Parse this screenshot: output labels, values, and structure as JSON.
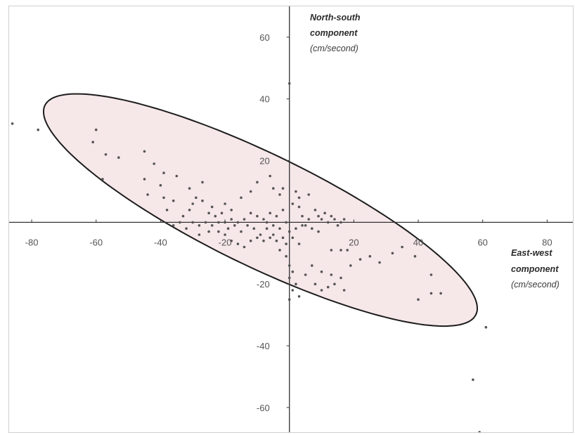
{
  "chart_data": {
    "type": "scatter",
    "title": "",
    "xlabel": [
      "East-west",
      "component",
      "(cm/second)"
    ],
    "ylabel": [
      "North-south",
      "component",
      "(cm/second)"
    ],
    "xlim": [
      -87,
      88
    ],
    "ylim": [
      -68,
      70
    ],
    "x_ticks": [
      -80,
      -60,
      -40,
      -20,
      0,
      20,
      40,
      60,
      80
    ],
    "y_ticks": [
      60,
      40,
      20,
      0,
      -20,
      -40,
      -60
    ],
    "grid": false,
    "ellipse": {
      "label": "",
      "center": [
        -9,
        4
      ],
      "semi_major": 75,
      "semi_minor": 18,
      "angle_deg": -27,
      "fill": "#f6e7e9",
      "stroke": "#1c1c1c"
    },
    "colors": {
      "points": "#555555",
      "axes": "#333333",
      "text": "#555555"
    },
    "points": [
      [
        -86,
        32
      ],
      [
        -78,
        30
      ],
      [
        -60,
        30
      ],
      [
        -61,
        26
      ],
      [
        -57,
        22
      ],
      [
        -53,
        21
      ],
      [
        -58,
        14
      ],
      [
        -45,
        23
      ],
      [
        -42,
        19
      ],
      [
        -45,
        14
      ],
      [
        -44,
        9
      ],
      [
        -39,
        16
      ],
      [
        -35,
        15
      ],
      [
        -40,
        12
      ],
      [
        -39,
        8
      ],
      [
        -27,
        13
      ],
      [
        -31,
        11
      ],
      [
        -36,
        7
      ],
      [
        -30,
        6
      ],
      [
        -27,
        7
      ],
      [
        -31,
        4
      ],
      [
        -38,
        4
      ],
      [
        -25,
        3
      ],
      [
        -20,
        6
      ],
      [
        -15,
        8
      ],
      [
        -12,
        10
      ],
      [
        -10,
        13
      ],
      [
        -6,
        15
      ],
      [
        -5,
        11
      ],
      [
        -3,
        9
      ],
      [
        -2,
        11
      ],
      [
        1,
        6
      ],
      [
        3,
        5
      ],
      [
        4,
        2
      ],
      [
        8,
        4
      ],
      [
        9,
        2
      ],
      [
        10,
        1
      ],
      [
        12,
        0
      ],
      [
        14,
        1
      ],
      [
        16,
        0
      ],
      [
        7,
        -2
      ],
      [
        5,
        -1
      ],
      [
        9,
        -3
      ],
      [
        -2,
        4
      ],
      [
        -4,
        2
      ],
      [
        -6,
        3
      ],
      [
        -8,
        1
      ],
      [
        -10,
        2
      ],
      [
        -12,
        3
      ],
      [
        -14,
        1
      ],
      [
        -16,
        0
      ],
      [
        -18,
        1
      ],
      [
        -20,
        0
      ],
      [
        -22,
        0
      ],
      [
        -24,
        -1
      ],
      [
        -26,
        0
      ],
      [
        -28,
        -1
      ],
      [
        -30,
        0
      ],
      [
        -32,
        -2
      ],
      [
        -34,
        0
      ],
      [
        -36,
        -1
      ],
      [
        -23,
        2
      ],
      [
        -19,
        -2
      ],
      [
        -17,
        -1
      ],
      [
        -15,
        -3
      ],
      [
        -13,
        -1
      ],
      [
        -11,
        -2
      ],
      [
        -9,
        -4
      ],
      [
        -7,
        -2
      ],
      [
        -5,
        -4
      ],
      [
        -3,
        -2
      ],
      [
        -2,
        -5
      ],
      [
        -1,
        -7
      ],
      [
        0,
        -3
      ],
      [
        1,
        -5
      ],
      [
        2,
        -2
      ],
      [
        3,
        -7
      ],
      [
        -4,
        -6
      ],
      [
        -6,
        -5
      ],
      [
        -8,
        -6
      ],
      [
        -10,
        -5
      ],
      [
        -12,
        -6
      ],
      [
        -14,
        -8
      ],
      [
        -16,
        -7
      ],
      [
        -18,
        -6
      ],
      [
        -20,
        -4
      ],
      [
        -22,
        -3
      ],
      [
        -25,
        -3
      ],
      [
        -28,
        -4
      ],
      [
        -3,
        -9
      ],
      [
        -1,
        -11
      ],
      [
        0,
        -14
      ],
      [
        1,
        -16
      ],
      [
        0,
        -18
      ],
      [
        2,
        -20
      ],
      [
        1,
        -22
      ],
      [
        3,
        -24
      ],
      [
        5,
        -17
      ],
      [
        8,
        -20
      ],
      [
        10,
        -22
      ],
      [
        12,
        -21
      ],
      [
        14,
        -20
      ],
      [
        16,
        -18
      ],
      [
        19,
        -14
      ],
      [
        22,
        -12
      ],
      [
        25,
        -11
      ],
      [
        28,
        -13
      ],
      [
        32,
        -10
      ],
      [
        35,
        -8
      ],
      [
        39,
        -11
      ],
      [
        44,
        -17
      ],
      [
        47,
        -23
      ],
      [
        40,
        -25
      ],
      [
        44,
        -23
      ],
      [
        10,
        -16
      ],
      [
        13,
        -17
      ],
      [
        17,
        -22
      ],
      [
        7,
        -14
      ],
      [
        0,
        -25
      ],
      [
        -5,
        -1
      ],
      [
        -7,
        0
      ],
      [
        -1,
        0
      ],
      [
        4,
        -1
      ],
      [
        6,
        1
      ],
      [
        11,
        3
      ],
      [
        13,
        2
      ],
      [
        15,
        -1
      ],
      [
        17,
        1
      ],
      [
        3,
        8
      ],
      [
        6,
        9
      ],
      [
        2,
        10
      ],
      [
        -24,
        5
      ],
      [
        -29,
        8
      ],
      [
        -33,
        2
      ],
      [
        -21,
        3
      ],
      [
        -18,
        4
      ],
      [
        0,
        45
      ],
      [
        61,
        -34
      ],
      [
        57,
        -51
      ],
      [
        59,
        -68
      ],
      [
        13,
        -9
      ],
      [
        16,
        -9
      ],
      [
        18,
        -9
      ]
    ]
  }
}
